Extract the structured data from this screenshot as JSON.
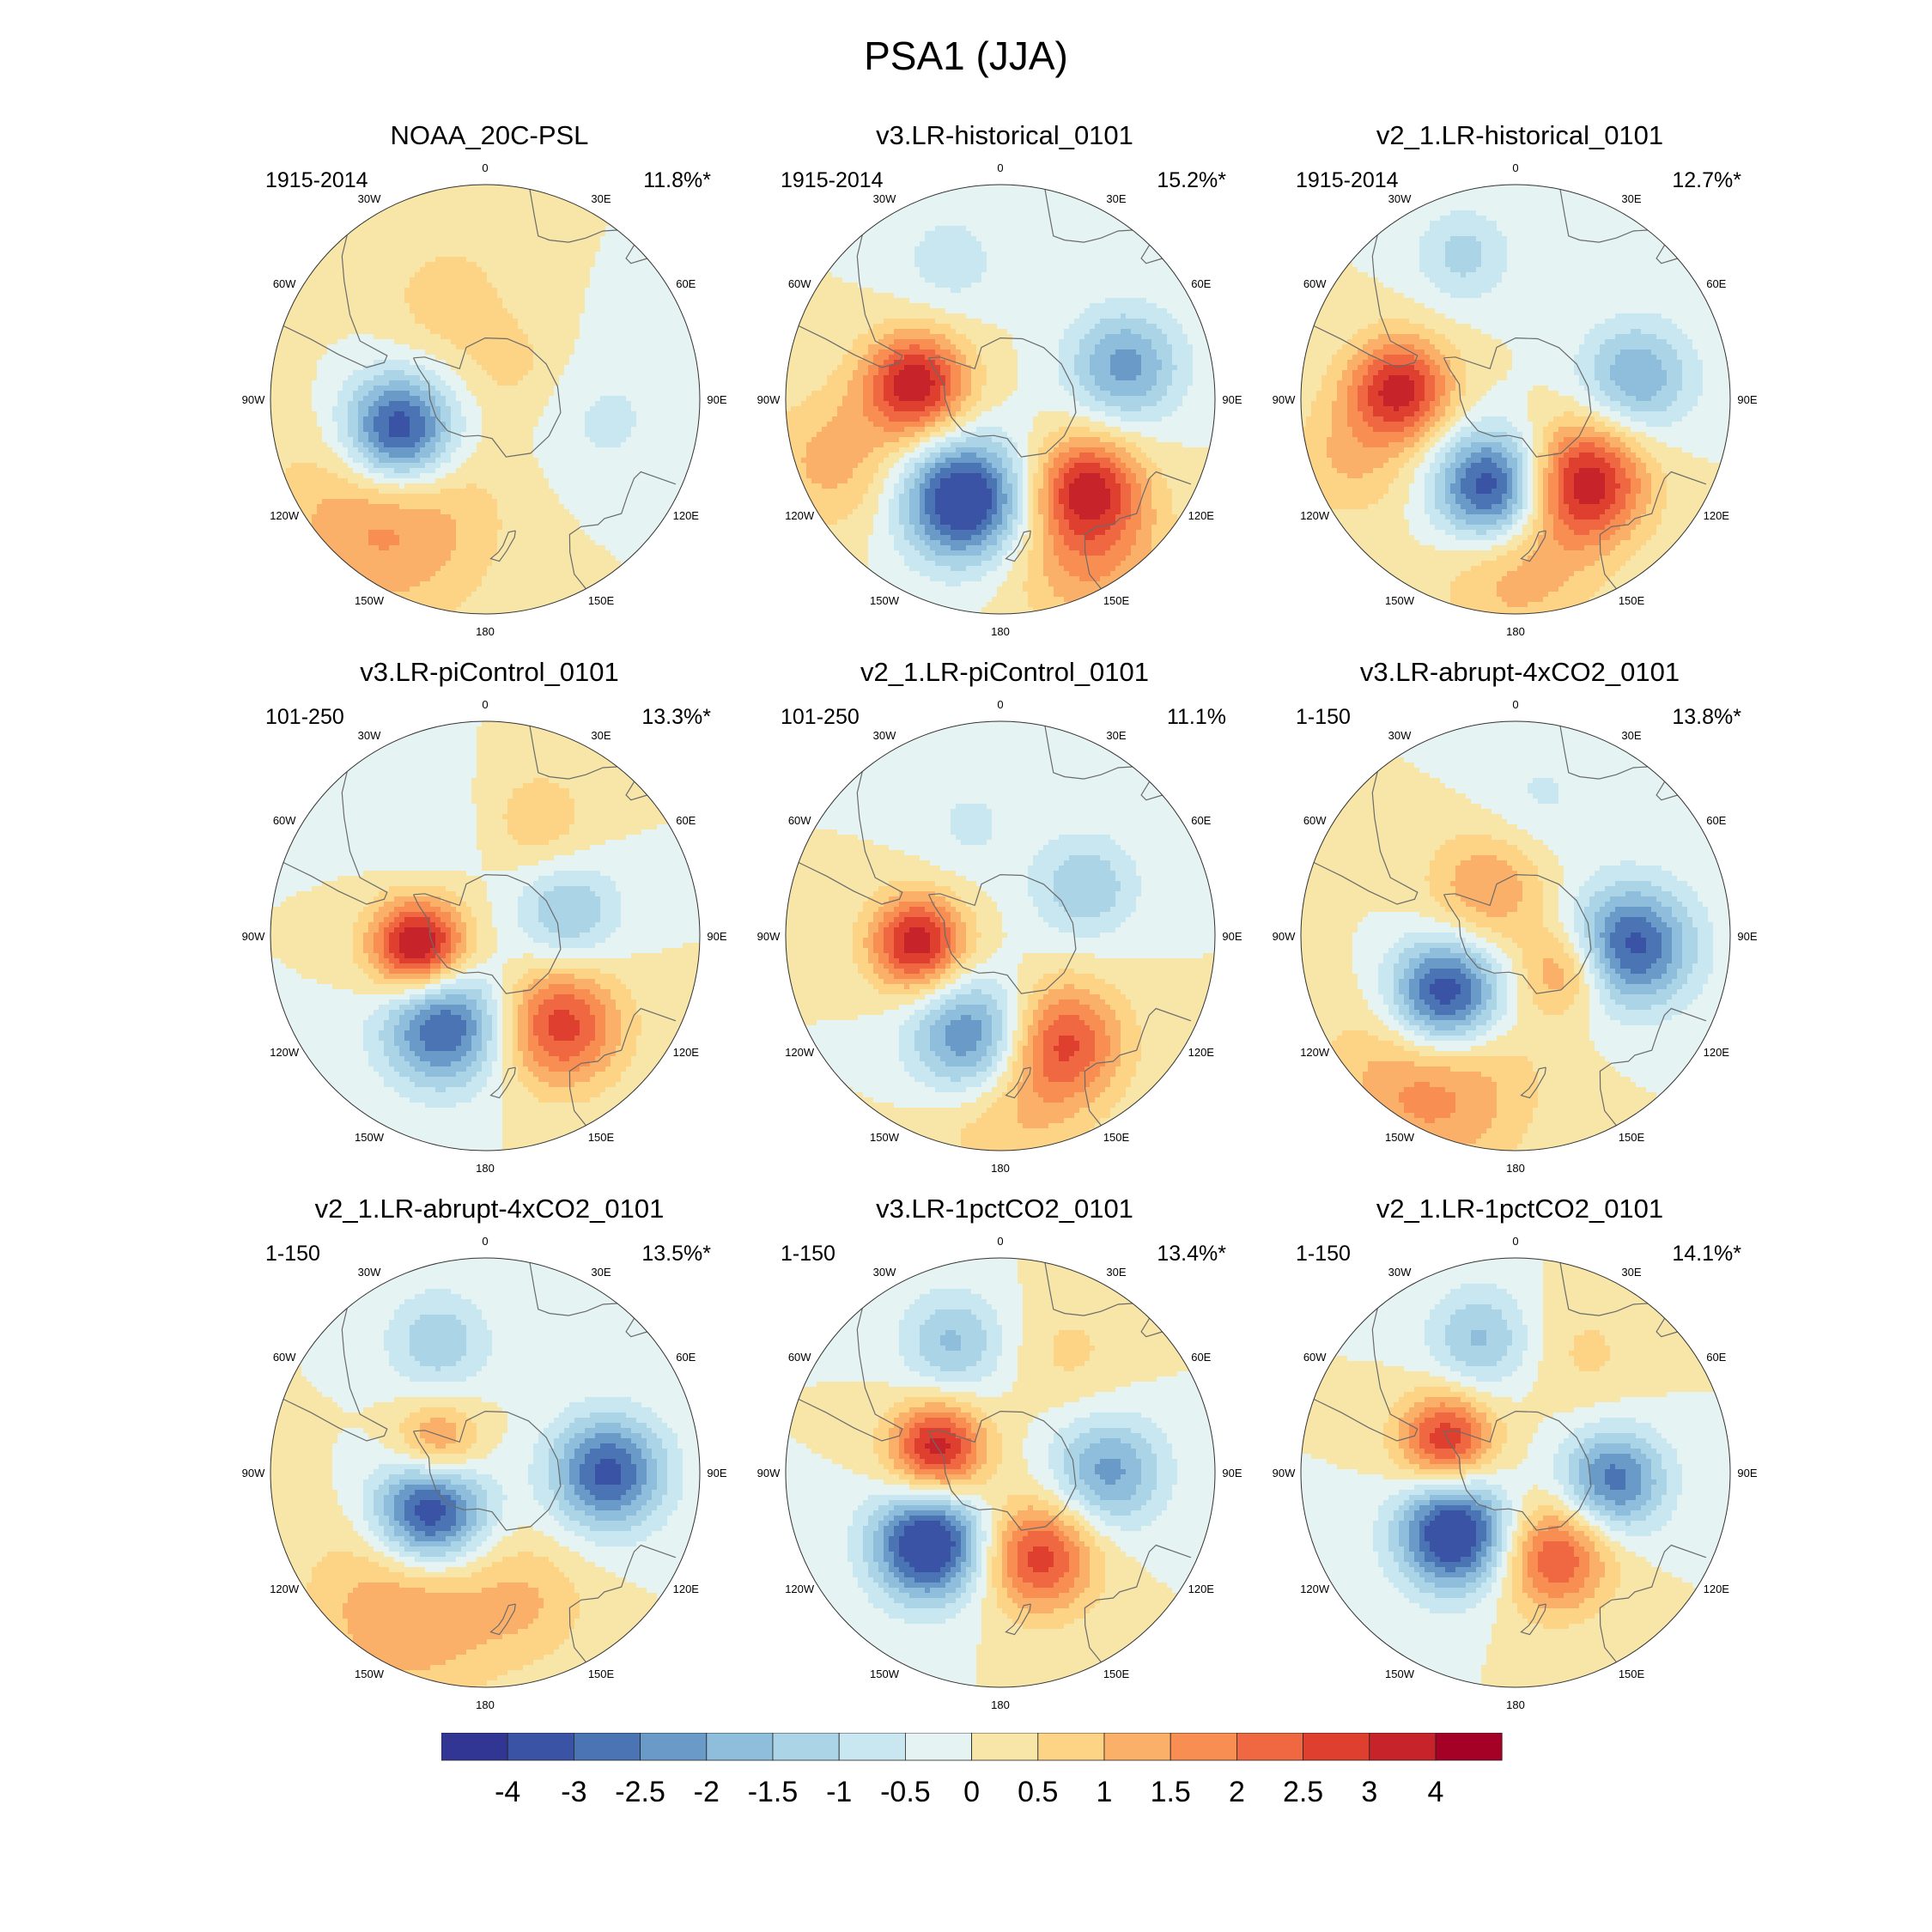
{
  "title": "PSA1 (JJA)",
  "colors": [
    "#313695",
    "#3a53a4",
    "#4a74b4",
    "#6a9ac8",
    "#8ebedb",
    "#abd5e7",
    "#c9e7f1",
    "#e6f3f3",
    "#f7e6a8",
    "#fdd386",
    "#fbb06a",
    "#f88e51",
    "#ef6842",
    "#de3f2e",
    "#c7232a",
    "#a50026"
  ],
  "colorbar_labels": [
    "-4",
    "-3",
    "-2.5",
    "-2",
    "-1.5",
    "-1",
    "-0.5",
    "0",
    "0.5",
    "1",
    "1.5",
    "2",
    "2.5",
    "3",
    "4"
  ],
  "lon_labels": [
    "0",
    "30E",
    "60E",
    "90E",
    "120E",
    "150E",
    "180",
    "150W",
    "120W",
    "90W",
    "60W",
    "30W"
  ],
  "panels": [
    {
      "title": "NOAA_20C-PSL",
      "period": "1915-2014",
      "pct": "11.8%*",
      "blobs": [
        {
          "lon": -110,
          "lat": -60,
          "v": -4.0,
          "s": 13
        },
        {
          "lon": -140,
          "lat": -40,
          "v": 1.7,
          "s": 24
        },
        {
          "lon": -20,
          "lat": -55,
          "v": 0.8,
          "s": 14
        },
        {
          "lon": 100,
          "lat": -50,
          "v": -0.6,
          "s": 16
        },
        {
          "lon": 40,
          "lat": -75,
          "v": 0.6,
          "s": 12
        }
      ]
    },
    {
      "title": "v3.LR-historical_0101",
      "period": "1915-2014",
      "pct": "15.2%*",
      "blobs": [
        {
          "lon": -80,
          "lat": -62,
          "v": 3.4,
          "s": 12
        },
        {
          "lon": -160,
          "lat": -55,
          "v": -4.0,
          "s": 14
        },
        {
          "lon": 135,
          "lat": -50,
          "v": 2.7,
          "s": 12
        },
        {
          "lon": 75,
          "lat": -48,
          "v": -2.2,
          "s": 13
        },
        {
          "lon": -20,
          "lat": -42,
          "v": -0.8,
          "s": 12
        },
        {
          "lon": 150,
          "lat": -32,
          "v": 1.6,
          "s": 18
        },
        {
          "lon": -110,
          "lat": -32,
          "v": 1.2,
          "s": 16
        }
      ]
    },
    {
      "title": "v2_1.LR-historical_0101",
      "period": "1915-2014",
      "pct": "12.7%*",
      "blobs": [
        {
          "lon": -85,
          "lat": -52,
          "v": 3.2,
          "s": 12
        },
        {
          "lon": -165,
          "lat": -60,
          "v": -3.8,
          "s": 13
        },
        {
          "lon": 140,
          "lat": -55,
          "v": 3.4,
          "s": 14
        },
        {
          "lon": 80,
          "lat": -50,
          "v": -2.0,
          "s": 13
        },
        {
          "lon": -20,
          "lat": -40,
          "v": -1.2,
          "s": 11
        },
        {
          "lon": 180,
          "lat": -35,
          "v": 1.3,
          "s": 18
        },
        {
          "lon": -110,
          "lat": -32,
          "v": 1.0,
          "s": 14
        }
      ]
    },
    {
      "title": "v3.LR-piControl_0101",
      "period": "101-250",
      "pct": "13.3%*",
      "blobs": [
        {
          "lon": -100,
          "lat": -68,
          "v": 4.0,
          "s": 11
        },
        {
          "lon": -155,
          "lat": -58,
          "v": -3.2,
          "s": 14
        },
        {
          "lon": 140,
          "lat": -52,
          "v": 2.8,
          "s": 14
        },
        {
          "lon": 75,
          "lat": -62,
          "v": -1.6,
          "s": 12
        },
        {
          "lon": 25,
          "lat": -48,
          "v": 0.9,
          "s": 12
        },
        {
          "lon": -30,
          "lat": -50,
          "v": -0.4,
          "s": 14
        }
      ]
    },
    {
      "title": "v2_1.LR-piControl_0101",
      "period": "101-250",
      "pct": "11.1%",
      "blobs": [
        {
          "lon": -95,
          "lat": -63,
          "v": 3.4,
          "s": 11
        },
        {
          "lon": -165,
          "lat": -55,
          "v": -3.0,
          "s": 14
        },
        {
          "lon": 150,
          "lat": -50,
          "v": 2.6,
          "s": 14
        },
        {
          "lon": 60,
          "lat": -58,
          "v": -1.5,
          "s": 12
        },
        {
          "lon": -15,
          "lat": -52,
          "v": -0.6,
          "s": 12
        },
        {
          "lon": 180,
          "lat": -35,
          "v": 1.1,
          "s": 18
        }
      ]
    },
    {
      "title": "v3.LR-abrupt-4xCO2_0101",
      "period": "1-150",
      "pct": "13.8%*",
      "blobs": [
        {
          "lon": -130,
          "lat": -60,
          "v": -4.0,
          "s": 13
        },
        {
          "lon": -150,
          "lat": -35,
          "v": 1.8,
          "s": 22
        },
        {
          "lon": 95,
          "lat": -52,
          "v": -3.2,
          "s": 14
        },
        {
          "lon": -30,
          "lat": -72,
          "v": 1.5,
          "s": 14
        },
        {
          "lon": 125,
          "lat": -70,
          "v": 1.7,
          "s": 10
        },
        {
          "lon": 10,
          "lat": -45,
          "v": -0.6,
          "s": 14
        }
      ]
    },
    {
      "title": "v2_1.LR-abrupt-4xCO2_0101",
      "period": "1-150",
      "pct": "13.5%*",
      "blobs": [
        {
          "lon": -125,
          "lat": -68,
          "v": -4.0,
          "s": 13
        },
        {
          "lon": 90,
          "lat": -50,
          "v": -3.2,
          "s": 13
        },
        {
          "lon": -20,
          "lat": -45,
          "v": -1.4,
          "s": 12
        },
        {
          "lon": -60,
          "lat": -72,
          "v": 2.0,
          "s": 10
        },
        {
          "lon": -150,
          "lat": -40,
          "v": 1.6,
          "s": 22
        },
        {
          "lon": 160,
          "lat": -45,
          "v": 0.8,
          "s": 14
        }
      ]
    },
    {
      "title": "v3.LR-1pctCO2_0101",
      "period": "1-150",
      "pct": "13.4%*",
      "blobs": [
        {
          "lon": -70,
          "lat": -68,
          "v": 3.4,
          "s": 11
        },
        {
          "lon": -135,
          "lat": -57,
          "v": -4.0,
          "s": 13
        },
        {
          "lon": 155,
          "lat": -60,
          "v": 2.8,
          "s": 13
        },
        {
          "lon": 90,
          "lat": -55,
          "v": -2.2,
          "s": 13
        },
        {
          "lon": -20,
          "lat": -45,
          "v": -1.6,
          "s": 12
        },
        {
          "lon": 30,
          "lat": -45,
          "v": 0.6,
          "s": 14
        }
      ]
    },
    {
      "title": "v2_1.LR-1pctCO2_0101",
      "period": "1-150",
      "pct": "14.1%*",
      "blobs": [
        {
          "lon": -65,
          "lat": -65,
          "v": 3.0,
          "s": 11
        },
        {
          "lon": -135,
          "lat": -62,
          "v": -4.0,
          "s": 13
        },
        {
          "lon": 155,
          "lat": -60,
          "v": 2.6,
          "s": 13
        },
        {
          "lon": 95,
          "lat": -58,
          "v": -2.8,
          "s": 12
        },
        {
          "lon": -15,
          "lat": -45,
          "v": -1.6,
          "s": 12
        },
        {
          "lon": 30,
          "lat": -45,
          "v": 0.6,
          "s": 14
        }
      ]
    }
  ]
}
